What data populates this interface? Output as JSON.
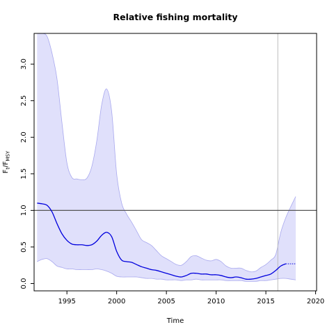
{
  "chart_data": {
    "type": "area",
    "title": "Relative fishing mortality",
    "xlabel": "Time",
    "ylabel": {
      "base": "F",
      "sub1": "t",
      "sep": "/F",
      "sub2": "MSY"
    },
    "xlim": [
      1991.7,
      2020.1
    ],
    "ylim": [
      -0.1,
      3.42
    ],
    "x_ticks": [
      1995,
      2000,
      2005,
      2010,
      2015,
      2020
    ],
    "y_ticks": [
      0.0,
      0.5,
      1.0,
      1.5,
      2.0,
      2.5,
      3.0
    ],
    "x_tick_labels": [
      "1995",
      "2000",
      "2005",
      "2010",
      "2015",
      "2020"
    ],
    "y_tick_labels": [
      "0.0",
      "0.5",
      "1.0",
      "1.5",
      "2.0",
      "2.5",
      "3.0"
    ],
    "reference_line": {
      "y": 1.0,
      "color": "#555555"
    },
    "vertical_marker": {
      "x": 2016.2,
      "color": "#bbbbbb"
    },
    "colors": {
      "band_fill": "#e0e0fb",
      "band_edge": "#a8a8ee",
      "estimate": "#0000dd"
    },
    "band": {
      "name": "",
      "x": [
        1992.0,
        1992.5,
        1993.0,
        1993.5,
        1994.0,
        1994.5,
        1995.0,
        1995.5,
        1996.0,
        1996.5,
        1997.0,
        1997.5,
        1998.0,
        1998.5,
        1999.0,
        1999.5,
        2000.0,
        2000.5,
        2001.0,
        2001.5,
        2002.0,
        2002.5,
        2003.0,
        2003.5,
        2004.0,
        2004.5,
        2005.0,
        2005.5,
        2006.0,
        2006.5,
        2007.0,
        2007.5,
        2008.0,
        2008.5,
        2009.0,
        2009.5,
        2010.0,
        2010.5,
        2011.0,
        2011.5,
        2012.0,
        2012.5,
        2013.0,
        2013.5,
        2014.0,
        2014.5,
        2015.0,
        2015.5,
        2016.0,
        2016.5,
        2017.0,
        2017.5,
        2018.0
      ],
      "upper": [
        3.42,
        3.42,
        3.38,
        3.15,
        2.8,
        2.2,
        1.65,
        1.45,
        1.43,
        1.42,
        1.44,
        1.6,
        1.95,
        2.45,
        2.66,
        2.35,
        1.5,
        1.1,
        0.95,
        0.84,
        0.72,
        0.6,
        0.56,
        0.52,
        0.45,
        0.38,
        0.34,
        0.3,
        0.26,
        0.25,
        0.3,
        0.37,
        0.38,
        0.35,
        0.32,
        0.31,
        0.33,
        0.3,
        0.24,
        0.21,
        0.21,
        0.21,
        0.18,
        0.16,
        0.17,
        0.22,
        0.26,
        0.32,
        0.4,
        0.7,
        0.9,
        1.05,
        1.19
      ],
      "lower": [
        0.3,
        0.33,
        0.34,
        0.3,
        0.24,
        0.22,
        0.2,
        0.2,
        0.19,
        0.19,
        0.19,
        0.19,
        0.2,
        0.19,
        0.17,
        0.14,
        0.1,
        0.09,
        0.09,
        0.09,
        0.09,
        0.08,
        0.07,
        0.07,
        0.06,
        0.06,
        0.05,
        0.05,
        0.05,
        0.04,
        0.05,
        0.05,
        0.06,
        0.05,
        0.05,
        0.05,
        0.05,
        0.05,
        0.04,
        0.04,
        0.04,
        0.04,
        0.03,
        0.03,
        0.03,
        0.04,
        0.04,
        0.05,
        0.06,
        0.07,
        0.07,
        0.06,
        0.05
      ]
    },
    "series": [
      {
        "name": "",
        "style": "solid",
        "x": [
          1992.0,
          1992.5,
          1993.0,
          1993.5,
          1994.0,
          1994.5,
          1995.0,
          1995.5,
          1996.0,
          1996.5,
          1997.0,
          1997.5,
          1998.0,
          1998.5,
          1999.0,
          1999.5,
          2000.0,
          2000.5,
          2001.0,
          2001.5,
          2002.0,
          2002.5,
          2003.0,
          2003.5,
          2004.0,
          2004.5,
          2005.0,
          2005.5,
          2006.0,
          2006.5,
          2007.0,
          2007.5,
          2008.0,
          2008.5,
          2009.0,
          2009.5,
          2010.0,
          2010.5,
          2011.0,
          2011.5,
          2012.0,
          2012.5,
          2013.0,
          2013.5,
          2014.0,
          2014.5,
          2015.0,
          2015.5,
          2016.0,
          2016.5,
          2017.0
        ],
        "y": [
          1.1,
          1.09,
          1.07,
          0.98,
          0.82,
          0.68,
          0.59,
          0.54,
          0.53,
          0.53,
          0.52,
          0.53,
          0.58,
          0.66,
          0.7,
          0.64,
          0.44,
          0.32,
          0.3,
          0.29,
          0.26,
          0.23,
          0.21,
          0.19,
          0.18,
          0.16,
          0.14,
          0.12,
          0.1,
          0.09,
          0.11,
          0.14,
          0.14,
          0.13,
          0.13,
          0.12,
          0.12,
          0.11,
          0.09,
          0.08,
          0.09,
          0.08,
          0.06,
          0.06,
          0.07,
          0.09,
          0.11,
          0.13,
          0.18,
          0.24,
          0.27
        ]
      },
      {
        "name": "",
        "style": "dotted",
        "x": [
          2017.0,
          2017.5,
          2018.0
        ],
        "y": [
          0.27,
          0.27,
          0.27
        ]
      }
    ]
  }
}
